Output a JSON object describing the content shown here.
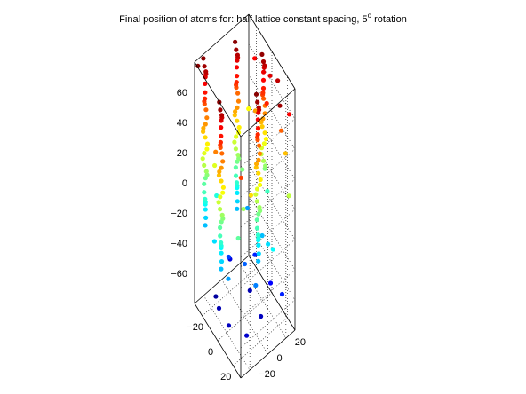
{
  "chart_data": {
    "type": "scatter",
    "projection": "3d",
    "title": "Final position of atoms for: half lattice constant spacing, 5° rotation",
    "title_prefix": "Final position of atoms for: half lattice constant spacing, 5",
    "title_degree": "o",
    "title_suffix": " rotation",
    "colormap": "jet",
    "color_by": "z",
    "grid": true,
    "box": true,
    "xlim": [
      -30,
      30
    ],
    "ylim": [
      -30,
      30
    ],
    "zlim": [
      -80,
      80
    ],
    "xticks": [
      -20,
      0,
      20
    ],
    "yticks": [
      -20,
      0,
      20
    ],
    "zticks": [
      -60,
      -40,
      -20,
      0,
      20,
      40,
      60
    ],
    "xtick_labels": [
      "−20",
      "0",
      "20"
    ],
    "ytick_labels": [
      "−20",
      "0",
      "20"
    ],
    "ztick_labels": [
      "−60",
      "−40",
      "−20",
      "0",
      "20",
      "40",
      "60"
    ],
    "columns": [
      {
        "x": -28,
        "y": -20,
        "z": [
          -30,
          80
        ]
      },
      {
        "x": -22,
        "y": 10,
        "z": [
          -30,
          80
        ]
      },
      {
        "x": 2,
        "y": -28,
        "z": [
          -30,
          80
        ]
      },
      {
        "x": 15,
        "y": 2,
        "z": [
          -30,
          80
        ]
      },
      {
        "x": -5,
        "y": 25,
        "z": [
          0,
          80
        ]
      }
    ],
    "scatter_points": [
      [
        -20,
        -15,
        -75
      ],
      [
        -10,
        -20,
        -72
      ],
      [
        5,
        -22,
        -70
      ],
      [
        20,
        -15,
        -68
      ],
      [
        15,
        5,
        -70
      ],
      [
        -5,
        10,
        -72
      ],
      [
        -25,
        5,
        -65
      ],
      [
        10,
        20,
        -60
      ],
      [
        25,
        20,
        -55
      ],
      [
        -15,
        -5,
        -50
      ],
      [
        0,
        0,
        -45
      ],
      [
        20,
        -5,
        -40
      ],
      [
        -20,
        20,
        -35
      ],
      [
        5,
        15,
        -30
      ],
      [
        -10,
        -25,
        -25
      ],
      [
        25,
        10,
        -20
      ],
      [
        -25,
        -10,
        -15
      ],
      [
        0,
        25,
        -10
      ],
      [
        15,
        -20,
        -5
      ],
      [
        -15,
        10,
        0
      ],
      [
        10,
        -10,
        5
      ],
      [
        28,
        25,
        10
      ],
      [
        -28,
        28,
        20
      ],
      [
        20,
        28,
        30
      ],
      [
        -5,
        -28,
        40
      ],
      [
        28,
        -28,
        50
      ],
      [
        -20,
        28,
        60
      ],
      [
        10,
        28,
        70
      ],
      [
        28,
        15,
        75
      ],
      [
        -28,
        -28,
        78
      ],
      [
        0,
        28,
        65
      ],
      [
        25,
        28,
        60
      ],
      [
        5,
        20,
        55
      ],
      [
        18,
        25,
        45
      ],
      [
        -12,
        22,
        35
      ],
      [
        22,
        -12,
        25
      ],
      [
        -18,
        -18,
        15
      ],
      [
        8,
        -25,
        -35
      ],
      [
        -8,
        18,
        -55
      ],
      [
        16,
        12,
        -25
      ]
    ]
  }
}
